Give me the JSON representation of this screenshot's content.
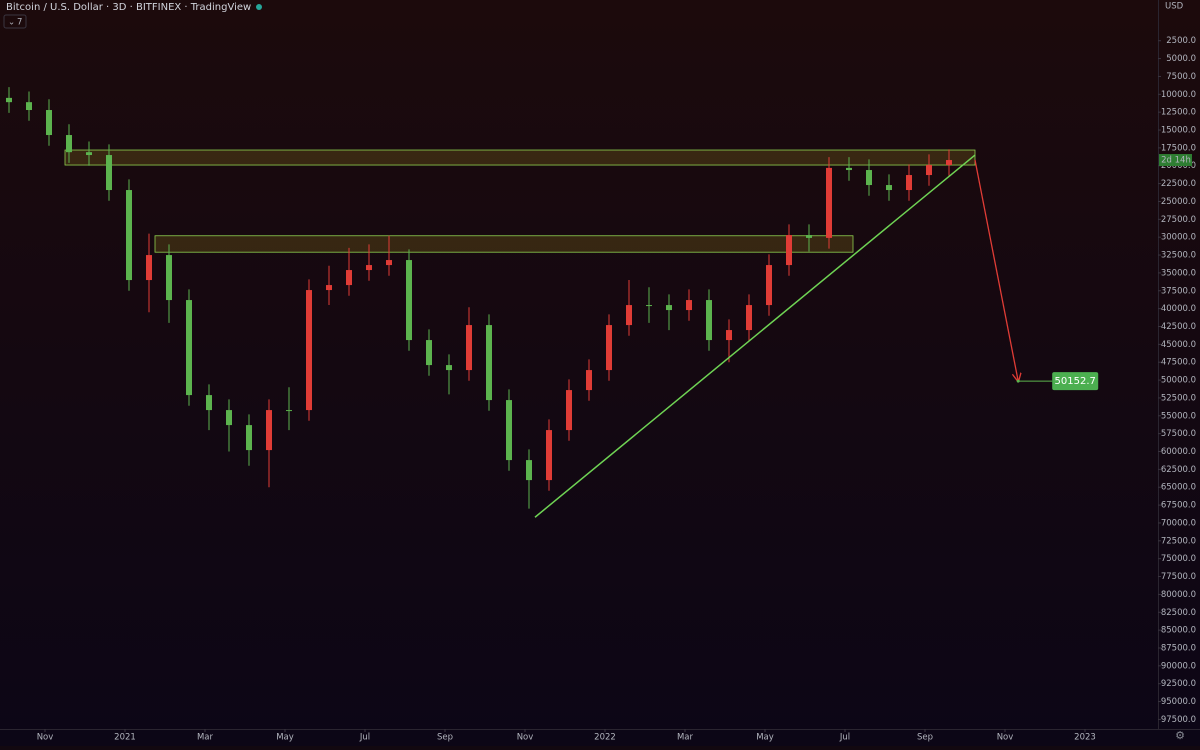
{
  "chart_data": {
    "type": "candlestick",
    "title": "Bitcoin / U.S. Dollar · 3D · BITFINEX · TradingView",
    "interval": "7",
    "currency": "USD",
    "countdown": "2d 14h",
    "up_color": "#5cb34e",
    "down_color": "#e03c36",
    "inverted": true,
    "xlim": [
      -1.125,
      27.825
    ],
    "xticks": [
      {
        "value": 0,
        "label": "Nov"
      },
      {
        "value": 2,
        "label": "2021"
      },
      {
        "value": 4,
        "label": "Mar"
      },
      {
        "value": 6,
        "label": "May"
      },
      {
        "value": 8,
        "label": "Jul"
      },
      {
        "value": 10,
        "label": "Sep"
      },
      {
        "value": 12,
        "label": "Nov"
      },
      {
        "value": 14,
        "label": "2022"
      },
      {
        "value": 16,
        "label": "Mar"
      },
      {
        "value": 18,
        "label": "May"
      },
      {
        "value": 20,
        "label": "Jul"
      },
      {
        "value": 22,
        "label": "Sep"
      },
      {
        "value": 24,
        "label": "Nov"
      },
      {
        "value": 26,
        "label": "2023"
      }
    ],
    "ylim": [
      -3200,
      98700
    ],
    "yticks": [
      {
        "value": 2500,
        "label": "2500.0"
      },
      {
        "value": 5000,
        "label": "5000.0"
      },
      {
        "value": 7500,
        "label": "7500.0"
      },
      {
        "value": 10000,
        "label": "10000.0"
      },
      {
        "value": 12500,
        "label": "12500.0"
      },
      {
        "value": 15000,
        "label": "15000.0"
      },
      {
        "value": 17500,
        "label": "17500.0"
      },
      {
        "value": 20000,
        "label": "20000.0"
      },
      {
        "value": 22500,
        "label": "22500.0"
      },
      {
        "value": 25000,
        "label": "25000.0"
      },
      {
        "value": 27500,
        "label": "27500.0"
      },
      {
        "value": 30000,
        "label": "30000.0"
      },
      {
        "value": 32500,
        "label": "32500.0"
      },
      {
        "value": 35000,
        "label": "35000.0"
      },
      {
        "value": 37500,
        "label": "37500.0"
      },
      {
        "value": 40000,
        "label": "40000.0"
      },
      {
        "value": 42500,
        "label": "42500.0"
      },
      {
        "value": 45000,
        "label": "45000.0"
      },
      {
        "value": 47500,
        "label": "47500.0"
      },
      {
        "value": 50000,
        "label": "50000.0"
      },
      {
        "value": 52500,
        "label": "52500.0"
      },
      {
        "value": 55000,
        "label": "55000.0"
      },
      {
        "value": 57500,
        "label": "57500.0"
      },
      {
        "value": 60000,
        "label": "60000.0"
      },
      {
        "value": 62500,
        "label": "62500.0"
      },
      {
        "value": 65000,
        "label": "65000.0"
      },
      {
        "value": 67500,
        "label": "67500.0"
      },
      {
        "value": 70000,
        "label": "70000.0"
      },
      {
        "value": 72500,
        "label": "72500.0"
      },
      {
        "value": 75000,
        "label": "75000.0"
      },
      {
        "value": 77500,
        "label": "77500.0"
      },
      {
        "value": 80000,
        "label": "80000.0"
      },
      {
        "value": 82500,
        "label": "82500.0"
      },
      {
        "value": 85000,
        "label": "85000.0"
      },
      {
        "value": 87500,
        "label": "87500.0"
      },
      {
        "value": 90000,
        "label": "90000.0"
      },
      {
        "value": 92500,
        "label": "92500.0"
      },
      {
        "value": 95000,
        "label": "95000.0"
      },
      {
        "value": 97500,
        "label": "97500.0"
      }
    ],
    "x": [
      -0.9,
      -0.4,
      0.1,
      0.6,
      1.1,
      1.6,
      2.1,
      2.6,
      3.1,
      3.6,
      4.1,
      4.6,
      5.1,
      5.6,
      6.1,
      6.6,
      7.1,
      7.6,
      8.1,
      8.6,
      9.1,
      9.6,
      10.1,
      10.6,
      11.1,
      11.6,
      12.1,
      12.6,
      13.1,
      13.6,
      14.1,
      14.6,
      15.1,
      15.6,
      16.1,
      16.6,
      17.1,
      17.6,
      18.1,
      18.6,
      19.1,
      19.6,
      20.1,
      20.6,
      21.1,
      21.6,
      22.1,
      22.6
    ],
    "open": [
      10500,
      11100,
      12200,
      15700,
      18100,
      18500,
      23400,
      36000,
      32500,
      38800,
      52100,
      54200,
      56300,
      59800,
      54200,
      54200,
      37400,
      36700,
      34600,
      33900,
      33200,
      44400,
      47900,
      48600,
      42300,
      52800,
      61200,
      64000,
      57000,
      51400,
      48600,
      42300,
      39500,
      39500,
      40200,
      38800,
      44400,
      43000,
      39500,
      33900,
      29700,
      30100,
      20300,
      20600,
      22700,
      23400,
      21300,
      19900
    ],
    "high": [
      12600,
      13700,
      17200,
      19600,
      20000,
      24900,
      37500,
      40500,
      42000,
      53600,
      57000,
      60000,
      62000,
      65000,
      57000,
      55700,
      39500,
      38200,
      36100,
      35400,
      45900,
      49400,
      52000,
      50100,
      54300,
      62700,
      68000,
      65500,
      58500,
      52900,
      50100,
      43800,
      42000,
      43000,
      41700,
      45900,
      47500,
      44500,
      41000,
      35400,
      32000,
      31600,
      22100,
      24200,
      24900,
      24900,
      22800,
      21400
    ],
    "low": [
      9000,
      9600,
      10700,
      14200,
      16600,
      17000,
      21900,
      29500,
      31000,
      37300,
      50600,
      52700,
      54800,
      52700,
      51000,
      35900,
      34000,
      31500,
      31000,
      29800,
      31700,
      42900,
      46400,
      39800,
      40800,
      51300,
      59700,
      55500,
      49900,
      47100,
      40800,
      36000,
      37000,
      38000,
      37300,
      37300,
      41500,
      38000,
      32400,
      28200,
      28200,
      18800,
      18800,
      19100,
      21200,
      19800,
      18400,
      17700
    ],
    "close": [
      11100,
      12200,
      15700,
      18100,
      18500,
      23400,
      36000,
      32500,
      38800,
      52100,
      54200,
      56300,
      59800,
      54200,
      54200,
      37400,
      36700,
      34600,
      33900,
      33200,
      44400,
      47900,
      48600,
      42300,
      52800,
      61200,
      64000,
      57000,
      51400,
      48600,
      42300,
      39500,
      39500,
      40200,
      38800,
      44400,
      43000,
      39500,
      33900,
      29700,
      30100,
      20300,
      20600,
      22700,
      23400,
      21300,
      19900,
      19200
    ],
    "zones": [
      {
        "x": [
          0.5,
          23.25
        ],
        "y": [
          17800,
          19900
        ]
      },
      {
        "x": [
          2.75,
          20.2
        ],
        "y": [
          29800,
          32100
        ]
      }
    ],
    "trendline": {
      "x": [
        12.25,
        23.25
      ],
      "y": [
        69200,
        18500
      ]
    },
    "arrow": {
      "x": [
        23.25,
        24.33
      ],
      "y": [
        19200,
        50152.7
      ]
    }
  }
}
